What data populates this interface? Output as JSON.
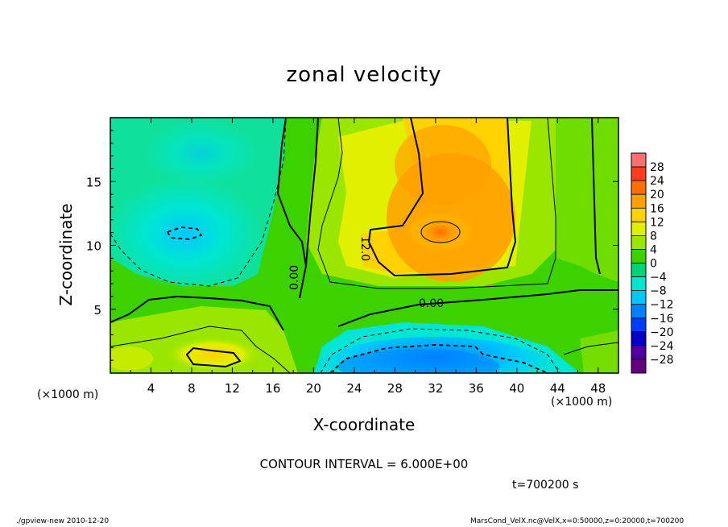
{
  "chart_data": {
    "type": "heatmap",
    "title": "zonal velocity",
    "xlabel": "X-coordinate",
    "ylabel": "Z-coordinate",
    "x_unit": "(×1000 m)",
    "xlim": [
      0,
      50
    ],
    "ylim": [
      0,
      20
    ],
    "x_ticks": [
      4,
      8,
      12,
      16,
      20,
      24,
      28,
      32,
      36,
      40,
      44,
      48
    ],
    "y_ticks": [
      5,
      10,
      15
    ],
    "contour_interval": "CONTOUR INTERVAL = 6.000E+00",
    "contour_labels": [
      "0.00",
      "12.0",
      "0.00"
    ],
    "colorbar": {
      "ticks": [
        28,
        24,
        20,
        16,
        12,
        8,
        4,
        0,
        -4,
        -8,
        -12,
        -16,
        -20,
        -24,
        -28
      ],
      "colors": [
        "#ff6e6e",
        "#ff3c1e",
        "#ff6e00",
        "#ffa000",
        "#ffd200",
        "#e1f000",
        "#9be600",
        "#3cd200",
        "#00d278",
        "#00e6d2",
        "#00c8ff",
        "#0082ff",
        "#003cff",
        "#0000c8",
        "#5000a0",
        "#64007d"
      ]
    },
    "field_features": [
      {
        "x": 33,
        "z": 11,
        "value": 16,
        "label": "max"
      },
      {
        "x": 7,
        "z": 11,
        "value": -6,
        "label": "min upper-left"
      },
      {
        "x": 32,
        "z": 1,
        "value": -14,
        "label": "min bottom"
      },
      {
        "x": 9,
        "z": 1.2,
        "value": 12,
        "label": "max bottom-left"
      }
    ]
  },
  "time_label": "t=700200 s",
  "footer_left": "./gpview-new  2010-12-20",
  "footer_right": "MarsCond_VelX.nc@VelX,x=0:50000,z=0:20000,t=700200"
}
